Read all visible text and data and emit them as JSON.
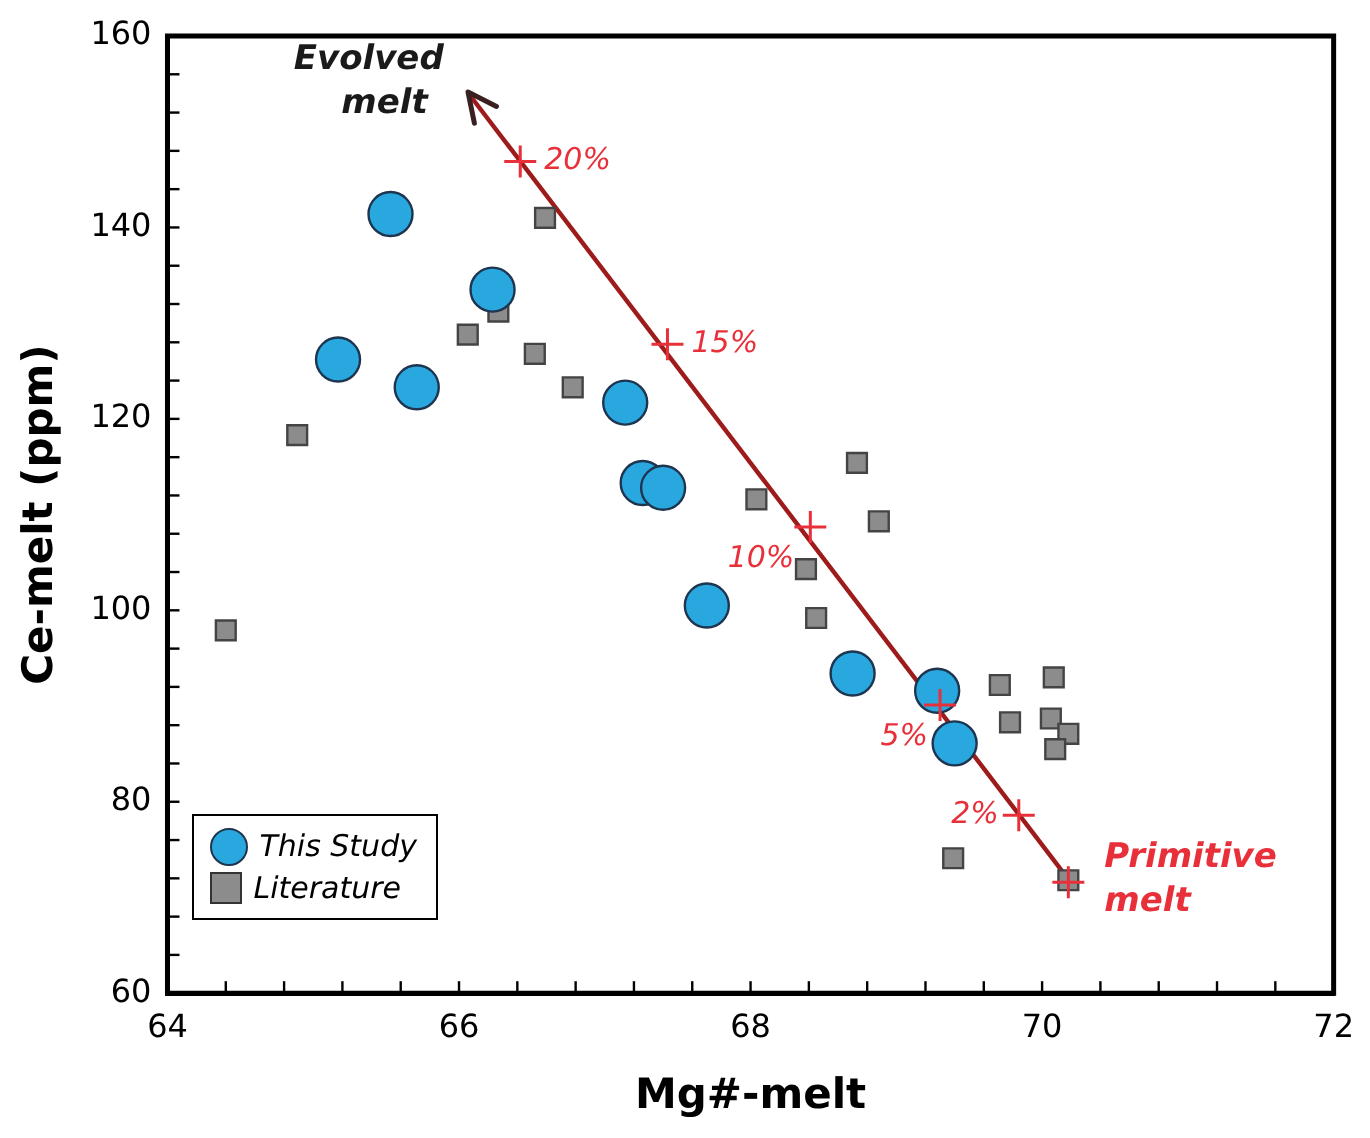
{
  "chart_data": {
    "type": "scatter",
    "xlabel": "Mg#-melt",
    "ylabel": "Ce-melt (ppm)",
    "xlim": [
      64,
      72
    ],
    "ylim": [
      60,
      160
    ],
    "xticks": [
      64,
      {
        "value": 64.4,
        "label": null
      },
      {
        "value": 64.8,
        "label": null
      },
      {
        "value": 65.2,
        "label": null
      },
      {
        "value": 65.6,
        "label": null
      },
      {
        "value": 66,
        "label": "66"
      },
      {
        "value": 66.4,
        "label": null
      },
      {
        "value": 66.8,
        "label": null
      },
      {
        "value": 67.2,
        "label": null
      },
      {
        "value": 67.6,
        "label": null
      },
      68,
      {
        "value": 68.4,
        "label": null
      },
      {
        "value": 68.8,
        "label": null
      },
      {
        "value": 69.2,
        "label": null
      },
      {
        "value": 69.6,
        "label": null
      },
      70,
      {
        "value": 70.4,
        "label": null
      },
      {
        "value": 70.8,
        "label": null
      },
      {
        "value": 71.2,
        "label": null
      },
      {
        "value": 71.6,
        "label": null
      },
      72
    ],
    "yticks": [
      60,
      {
        "value": 64,
        "label": null
      },
      {
        "value": 68,
        "label": null
      },
      {
        "value": 72,
        "label": null
      },
      {
        "value": 76,
        "label": null
      },
      80,
      {
        "value": 84,
        "label": null
      },
      {
        "value": 88,
        "label": null
      },
      {
        "value": 92,
        "label": null
      },
      {
        "value": 96,
        "label": null
      },
      100,
      {
        "value": 104,
        "label": null
      },
      {
        "value": 108,
        "label": null
      },
      {
        "value": 112,
        "label": null
      },
      {
        "value": 116,
        "label": null
      },
      120,
      {
        "value": 124,
        "label": null
      },
      {
        "value": 128,
        "label": null
      },
      {
        "value": 132,
        "label": null
      },
      {
        "value": 136,
        "label": null
      },
      140,
      {
        "value": 144,
        "label": null
      },
      {
        "value": 148,
        "label": null
      },
      {
        "value": 152,
        "label": null
      },
      {
        "value": 156,
        "label": null
      },
      160
    ],
    "grid": false,
    "legend": "bottom left",
    "series": [
      {
        "name": "This Study",
        "marker": "circle",
        "color": "#29a8e0",
        "x": [
          65.53,
          65.17,
          65.71,
          66.23,
          67.14,
          67.26,
          67.4,
          67.7,
          68.7,
          69.28,
          69.4
        ],
        "values": [
          141.4,
          126.2,
          123.3,
          133.5,
          121.7,
          113.3,
          112.8,
          100.5,
          93.4,
          91.6,
          86.1
        ]
      },
      {
        "name": "Literature",
        "marker": "square",
        "color": "#8c8c8c",
        "x": [
          66.59,
          66.27,
          66.06,
          66.52,
          66.78,
          64.89,
          68.04,
          64.4,
          68.73,
          68.88,
          68.38,
          68.45,
          69.71,
          70.08,
          69.78,
          70.06,
          70.18,
          70.09,
          69.39,
          70.18
        ],
        "values": [
          141,
          131.2,
          128.8,
          126.8,
          123.3,
          118.3,
          111.6,
          97.9,
          115.4,
          109.3,
          104.3,
          99.2,
          92.2,
          93,
          88.3,
          88.7,
          87.1,
          85.5,
          74.1,
          71.8
        ]
      },
      {
        "type": "line",
        "marker": "none",
        "color": "#9e1b1b",
        "x": [
          70.2,
          66.06
        ],
        "values": [
          71.5,
          154.1
        ]
      },
      {
        "type": "scatter",
        "marker": "cross",
        "color": "#e8303a",
        "x": [
          70.18,
          69.84,
          69.3,
          68.41,
          67.43,
          66.42
        ],
        "values": [
          71.6,
          78.6,
          90.1,
          108.7,
          127.8,
          146.9
        ]
      }
    ],
    "annotations": [
      {
        "text": "Evolved melt",
        "x": 66.06,
        "y": 154.1
      },
      {
        "text": "Primitive melt",
        "x": 70.18,
        "y": 71.6
      },
      {
        "text": "2%",
        "x": 69.84,
        "y": 78.6
      },
      {
        "text": "5%",
        "x": 69.3,
        "y": 90.1
      },
      {
        "text": "10%",
        "x": 68.41,
        "y": 108.7
      },
      {
        "text": "15%",
        "x": 67.43,
        "y": 127.8
      },
      {
        "text": "20%",
        "x": 66.42,
        "y": 146.9
      }
    ]
  }
}
